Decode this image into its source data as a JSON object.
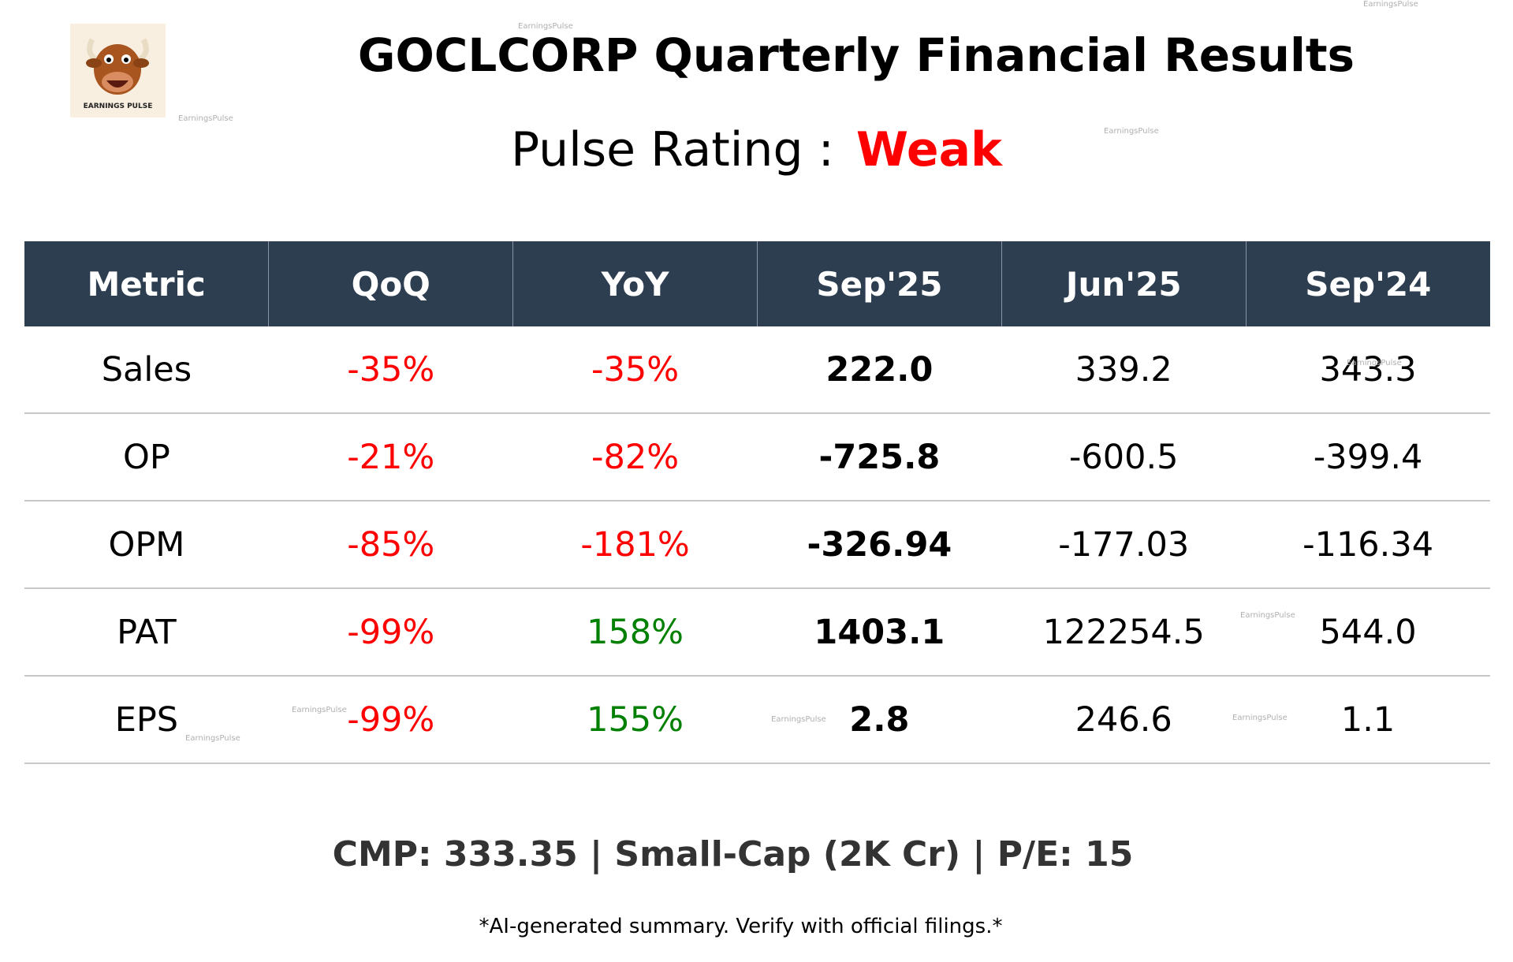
{
  "header": {
    "title": "GOCLCORP Quarterly Financial Results",
    "rating_label": "Pulse Rating :",
    "rating": "Weak",
    "logo_text": "EARNINGS PULSE",
    "watermark": "EarningsPulse"
  },
  "table": {
    "columns": [
      "Metric",
      "QoQ",
      "YoY",
      "Sep'25",
      "Jun'25",
      "Sep'24"
    ],
    "rows": [
      [
        "Sales",
        "-35%",
        "-35%",
        "222.0",
        "339.2",
        "343.3"
      ],
      [
        "OP",
        "-21%",
        "-82%",
        "-725.8",
        "-600.5",
        "-399.4"
      ],
      [
        "OPM",
        "-85%",
        "-181%",
        "-326.94",
        "-177.03",
        "-116.34"
      ],
      [
        "PAT",
        "-99%",
        "158%",
        "1403.1",
        "122254.5",
        "544.0"
      ],
      [
        "EPS",
        "-99%",
        "155%",
        "2.8",
        "246.6",
        "1.1"
      ]
    ]
  },
  "footer": {
    "summary": "CMP: 333.35 | Small-Cap (2K Cr) | P/E: 15",
    "disclaimer": "*AI-generated summary. Verify with official filings.*"
  }
}
